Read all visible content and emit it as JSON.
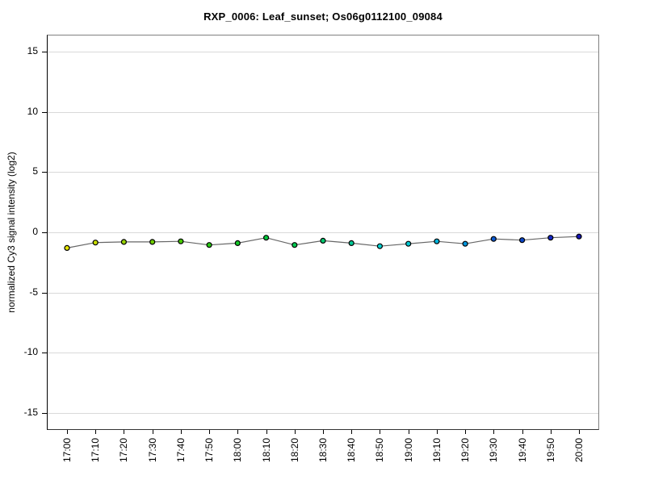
{
  "page": {
    "background": "#ffffff"
  },
  "chart_data": {
    "type": "line",
    "title": "RXP_0006: Leaf_sunset; Os06g0112100_09084",
    "xlabel": "",
    "ylabel": "normalized Cy3 signal intensity (log2)",
    "x": [
      "17:00",
      "17:10",
      "17:20",
      "17:30",
      "17:40",
      "17:50",
      "18:00",
      "18:10",
      "18:20",
      "18:30",
      "18:40",
      "18:50",
      "19:00",
      "19:10",
      "19:20",
      "19:30",
      "19:40",
      "19:50",
      "20:00"
    ],
    "values": [
      -1.3,
      -0.85,
      -0.8,
      -0.8,
      -0.75,
      -1.05,
      -0.9,
      -0.45,
      -1.05,
      -0.7,
      -0.9,
      -1.15,
      -0.95,
      -0.75,
      -0.95,
      -0.55,
      -0.65,
      -0.45,
      -0.35
    ],
    "point_colors": [
      "#e6e600",
      "#c8dc00",
      "#96d200",
      "#6ecc00",
      "#46c800",
      "#28c814",
      "#14c828",
      "#00c83c",
      "#00c850",
      "#00c86e",
      "#00c896",
      "#00d2d2",
      "#00c8d2",
      "#00b4dc",
      "#0096dc",
      "#0a5ad2",
      "#0a46c8",
      "#1428c8",
      "#1414b4"
    ],
    "yticks": [
      15,
      10,
      5,
      0,
      -5,
      -10,
      -15
    ],
    "ylim": [
      -16.35,
      16.35
    ],
    "grid": "horizontal gridlines only",
    "legend": "none",
    "line_color": "#666666",
    "marker_outline_color": "#000000",
    "gridline_color": "#d9d9d9",
    "frame_color": "#808080",
    "tick_color": "#000000"
  }
}
